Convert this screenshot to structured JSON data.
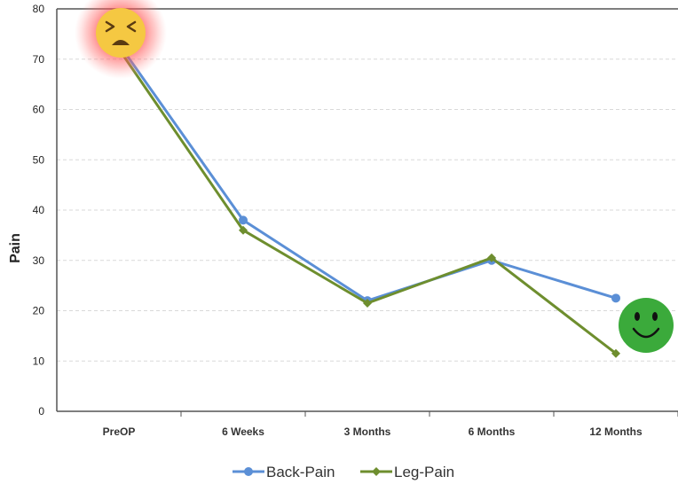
{
  "chart_data": {
    "type": "line",
    "categories": [
      "PreOP",
      "6 Weeks",
      "3 Months",
      "6 Months",
      "12 Months"
    ],
    "series": [
      {
        "name": "Back-Pain",
        "values": [
          73,
          38,
          22,
          30,
          22.5
        ],
        "color": "#5B8FD6",
        "marker": "circle"
      },
      {
        "name": "Leg-Pain",
        "values": [
          72,
          36,
          21.5,
          30.5,
          11.5
        ],
        "color": "#6E8E2E",
        "marker": "diamond"
      }
    ],
    "title": "",
    "xlabel": "",
    "ylabel": "Pain",
    "ylim": [
      0,
      80
    ],
    "yticks": [
      0,
      10,
      20,
      30,
      40,
      50,
      60,
      70,
      80
    ],
    "grid": true,
    "legend_position": "bottom",
    "annotations": [
      {
        "icon": "distressed-face-emoji-icon",
        "at_category": "PreOP",
        "color": "#F5C842",
        "glow": "#FF4A4A"
      },
      {
        "icon": "smiley-face-icon",
        "at_category": "12 Months",
        "color": "#3BAA3B"
      }
    ]
  }
}
